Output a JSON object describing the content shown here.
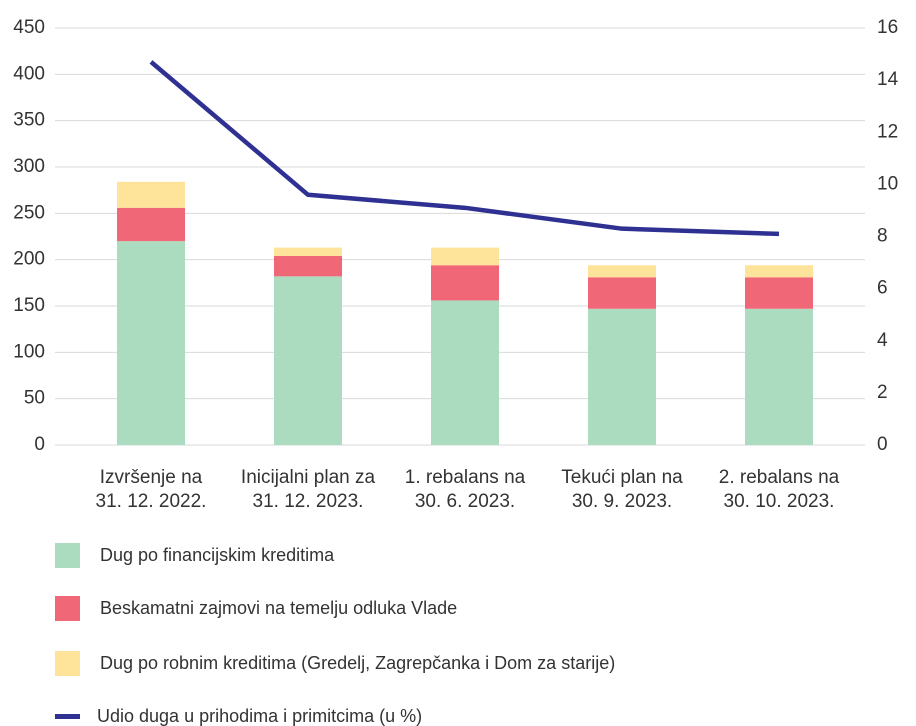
{
  "chart_data": {
    "type": "bar",
    "categories": [
      "Izvršenje na\n31. 12. 2022.",
      "Inicijalni plan za\n31. 12. 2023.",
      "1. rebalans na\n30. 6. 2023.",
      "Tekući plan na\n30. 9. 2023.",
      "2. rebalans na\n30. 10. 2023."
    ],
    "stacked": true,
    "series": [
      {
        "name": "Dug po financijskim kreditima",
        "color": "#acdcc0",
        "values": [
          220,
          182,
          156,
          147,
          147
        ]
      },
      {
        "name": "Beskamatni zajmovi na temelju odluka Vlade",
        "color": "#f06878",
        "values": [
          36,
          22,
          38,
          34,
          34
        ]
      },
      {
        "name": "Dug po robnim kreditima (Gredelj, Zagrepčanka i Dom za starije)",
        "color": "#fde49a",
        "values": [
          28,
          9,
          19,
          13,
          13
        ]
      },
      {
        "name": "Udio duga u prihodima i primitcima (u %)",
        "color": "#2e3192",
        "type": "line",
        "axis": "y2",
        "values": [
          14.7,
          9.6,
          9.1,
          8.3,
          8.1
        ]
      }
    ],
    "ylim": [
      0,
      450
    ],
    "yticks": [
      0,
      50,
      100,
      150,
      200,
      250,
      300,
      350,
      400,
      450
    ],
    "y2lim": [
      0,
      16
    ],
    "y2ticks": [
      0,
      2,
      4,
      6,
      8,
      10,
      12,
      14,
      16
    ],
    "grid": true,
    "legend": "bottom"
  }
}
